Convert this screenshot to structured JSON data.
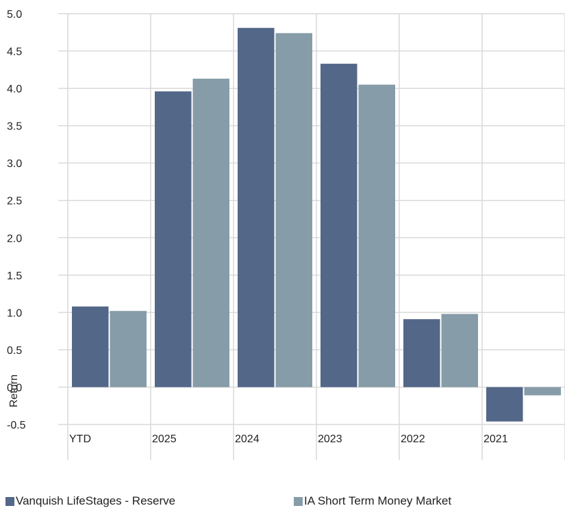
{
  "chart_data": {
    "type": "bar",
    "categories": [
      "YTD",
      "2025",
      "2024",
      "2023",
      "2022",
      "2021"
    ],
    "series": [
      {
        "name": "Vanquish LifeStages - Reserve",
        "color": "#536789",
        "values": [
          1.08,
          3.96,
          4.81,
          4.33,
          0.91,
          -0.46
        ]
      },
      {
        "name": "IA Short Term Money Market",
        "color": "#869ca8",
        "values": [
          1.02,
          4.13,
          4.74,
          4.05,
          0.98,
          -0.11
        ]
      }
    ],
    "title": "",
    "xlabel": "",
    "ylabel": "Return",
    "ylim": [
      -0.5,
      5.0
    ],
    "yticks": [
      "5.0",
      "4.5",
      "4.0",
      "3.5",
      "3.0",
      "2.5",
      "2.0",
      "1.5",
      "1.0",
      "0.5",
      "0.0",
      "-0.5"
    ],
    "grid": true,
    "legend_position": "bottom"
  }
}
